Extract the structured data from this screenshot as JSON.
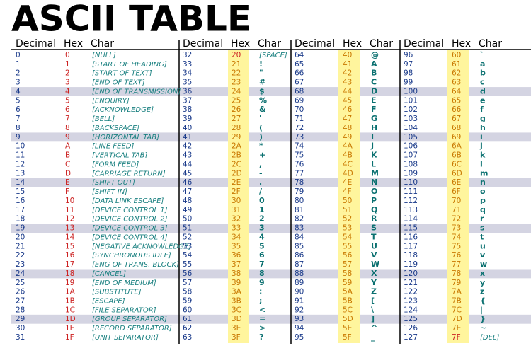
{
  "title": "ASCII TABLE",
  "groups": [
    {
      "headers": [
        "Decimal",
        "Hex",
        "Char"
      ],
      "rows": [
        [
          0,
          "0",
          "[NULL]"
        ],
        [
          1,
          "1",
          "[START OF HEADING]"
        ],
        [
          2,
          "2",
          "[START OF TEXT]"
        ],
        [
          3,
          "3",
          "[END OF TEXT]"
        ],
        [
          4,
          "4",
          "[END OF TRANSMISSION]"
        ],
        [
          5,
          "5",
          "[ENQUIRY]"
        ],
        [
          6,
          "6",
          "[ACKNOWLEDGE]"
        ],
        [
          7,
          "7",
          "[BELL]"
        ],
        [
          8,
          "8",
          "[BACKSPACE]"
        ],
        [
          9,
          "9",
          "[HORIZONTAL TAB]"
        ],
        [
          10,
          "A",
          "[LINE FEED]"
        ],
        [
          11,
          "B",
          "[VERTICAL TAB]"
        ],
        [
          12,
          "C",
          "[FORM FEED]"
        ],
        [
          13,
          "D",
          "[CARRIAGE RETURN]"
        ],
        [
          14,
          "E",
          "[SHIFT OUT]"
        ],
        [
          15,
          "F",
          "[SHIFT IN]"
        ],
        [
          16,
          "10",
          "[DATA LINK ESCAPE]"
        ],
        [
          17,
          "11",
          "[DEVICE CONTROL 1]"
        ],
        [
          18,
          "12",
          "[DEVICE CONTROL 2]"
        ],
        [
          19,
          "13",
          "[DEVICE CONTROL 3]"
        ],
        [
          20,
          "14",
          "[DEVICE CONTROL 4]"
        ],
        [
          21,
          "15",
          "[NEGATIVE ACKNOWLEDGE]"
        ],
        [
          22,
          "16",
          "[SYNCHRONOUS IDLE]"
        ],
        [
          23,
          "17",
          "[ENG OF TRANS. BLOCK]"
        ],
        [
          24,
          "18",
          "[CANCEL]"
        ],
        [
          25,
          "19",
          "[END OF MEDIUM]"
        ],
        [
          26,
          "1A",
          "[SUBSTITUTE]"
        ],
        [
          27,
          "1B",
          "[ESCAPE]"
        ],
        [
          28,
          "1C",
          "[FILE SEPARATOR]"
        ],
        [
          29,
          "1D",
          "[GROUP SEPARATOR]"
        ],
        [
          30,
          "1E",
          "[RECORD SEPARATOR]"
        ],
        [
          31,
          "1F",
          "[UNIT SEPARATOR]"
        ]
      ]
    },
    {
      "headers": [
        "Decimal",
        "Hex",
        "Char"
      ],
      "rows": [
        [
          32,
          "20",
          "[SPACE]"
        ],
        [
          33,
          "21",
          "!"
        ],
        [
          34,
          "22",
          "\""
        ],
        [
          35,
          "23",
          "#"
        ],
        [
          36,
          "24",
          "$"
        ],
        [
          37,
          "25",
          "%"
        ],
        [
          38,
          "26",
          "&"
        ],
        [
          39,
          "27",
          "'"
        ],
        [
          40,
          "28",
          "("
        ],
        [
          41,
          "29",
          ")"
        ],
        [
          42,
          "2A",
          "*"
        ],
        [
          43,
          "2B",
          "+"
        ],
        [
          44,
          "2C",
          ","
        ],
        [
          45,
          "2D",
          "-"
        ],
        [
          46,
          "2E",
          "."
        ],
        [
          47,
          "2F",
          "/"
        ],
        [
          48,
          "30",
          "0"
        ],
        [
          49,
          "31",
          "1"
        ],
        [
          50,
          "32",
          "2"
        ],
        [
          51,
          "33",
          "3"
        ],
        [
          52,
          "34",
          "4"
        ],
        [
          53,
          "35",
          "5"
        ],
        [
          54,
          "36",
          "6"
        ],
        [
          55,
          "37",
          "7"
        ],
        [
          56,
          "38",
          "8"
        ],
        [
          57,
          "39",
          "9"
        ],
        [
          58,
          "3A",
          ":"
        ],
        [
          59,
          "3B",
          ";"
        ],
        [
          60,
          "3C",
          "<"
        ],
        [
          61,
          "3D",
          "="
        ],
        [
          62,
          "3E",
          ">"
        ],
        [
          63,
          "3F",
          "?"
        ]
      ]
    },
    {
      "headers": [
        "Decimal",
        "Hex",
        "Char"
      ],
      "rows": [
        [
          64,
          "40",
          "@"
        ],
        [
          65,
          "41",
          "A"
        ],
        [
          66,
          "42",
          "B"
        ],
        [
          67,
          "43",
          "C"
        ],
        [
          68,
          "44",
          "D"
        ],
        [
          69,
          "45",
          "E"
        ],
        [
          70,
          "46",
          "F"
        ],
        [
          71,
          "47",
          "G"
        ],
        [
          72,
          "48",
          "H"
        ],
        [
          73,
          "49",
          "I"
        ],
        [
          74,
          "4A",
          "J"
        ],
        [
          75,
          "4B",
          "K"
        ],
        [
          76,
          "4C",
          "L"
        ],
        [
          77,
          "4D",
          "M"
        ],
        [
          78,
          "4E",
          "N"
        ],
        [
          79,
          "4F",
          "O"
        ],
        [
          80,
          "50",
          "P"
        ],
        [
          81,
          "51",
          "Q"
        ],
        [
          82,
          "52",
          "R"
        ],
        [
          83,
          "53",
          "S"
        ],
        [
          84,
          "54",
          "T"
        ],
        [
          85,
          "55",
          "U"
        ],
        [
          86,
          "56",
          "V"
        ],
        [
          87,
          "57",
          "W"
        ],
        [
          88,
          "58",
          "X"
        ],
        [
          89,
          "59",
          "Y"
        ],
        [
          90,
          "5A",
          "Z"
        ],
        [
          91,
          "5B",
          "["
        ],
        [
          92,
          "5C",
          "\\"
        ],
        [
          93,
          "5D",
          "]"
        ],
        [
          94,
          "5E",
          "^"
        ],
        [
          95,
          "5F",
          "_"
        ]
      ]
    },
    {
      "headers": [
        "Decimal",
        "Hex",
        "Char"
      ],
      "rows": [
        [
          96,
          "60",
          "`"
        ],
        [
          97,
          "61",
          "a"
        ],
        [
          98,
          "62",
          "b"
        ],
        [
          99,
          "63",
          "c"
        ],
        [
          100,
          "64",
          "d"
        ],
        [
          101,
          "65",
          "e"
        ],
        [
          102,
          "66",
          "f"
        ],
        [
          103,
          "67",
          "g"
        ],
        [
          104,
          "68",
          "h"
        ],
        [
          105,
          "69",
          "i"
        ],
        [
          106,
          "6A",
          "j"
        ],
        [
          107,
          "6B",
          "k"
        ],
        [
          108,
          "6C",
          "l"
        ],
        [
          109,
          "6D",
          "m"
        ],
        [
          110,
          "6E",
          "n"
        ],
        [
          111,
          "6F",
          "o"
        ],
        [
          112,
          "70",
          "p"
        ],
        [
          113,
          "71",
          "q"
        ],
        [
          114,
          "72",
          "r"
        ],
        [
          115,
          "73",
          "s"
        ],
        [
          116,
          "74",
          "t"
        ],
        [
          117,
          "75",
          "u"
        ],
        [
          118,
          "76",
          "v"
        ],
        [
          119,
          "77",
          "w"
        ],
        [
          120,
          "78",
          "x"
        ],
        [
          121,
          "79",
          "y"
        ],
        [
          122,
          "7A",
          "z"
        ],
        [
          123,
          "7B",
          "{"
        ],
        [
          124,
          "7C",
          "|"
        ],
        [
          125,
          "7D",
          "}"
        ],
        [
          126,
          "7E",
          "~"
        ],
        [
          127,
          "7F",
          "[DEL]"
        ]
      ]
    }
  ]
}
